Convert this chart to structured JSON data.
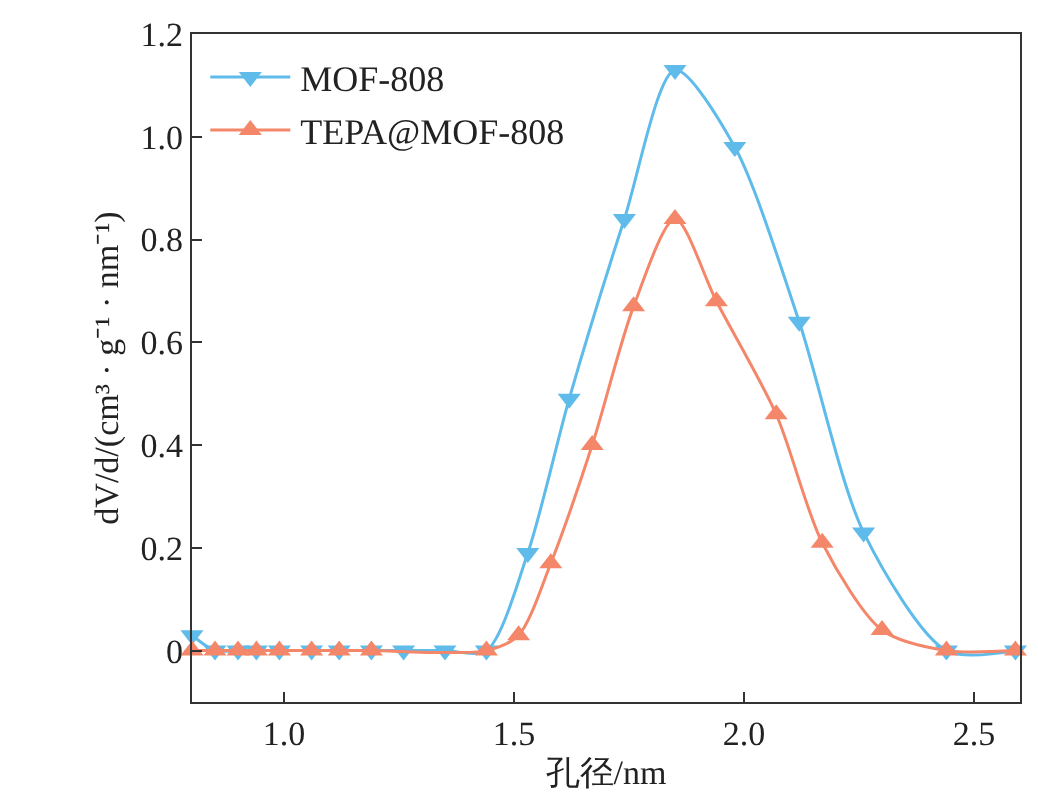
{
  "chart_data": {
    "type": "line",
    "xlabel": "孔径/nm",
    "ylabel": "dV/d/(cm³ · g⁻¹ · nm⁻¹)",
    "xlim": [
      0.8,
      2.6
    ],
    "xticks": [
      {
        "value": 1,
        "label": "1.0"
      },
      1.5,
      {
        "value": 2,
        "label": "2.0"
      },
      2.5
    ],
    "ylim": [
      -0.1,
      1.2
    ],
    "yticks": [
      0,
      0.2,
      0.4,
      0.6,
      0.8,
      {
        "value": 1,
        "label": "1.0"
      },
      1.2
    ],
    "legend": "top left",
    "series": [
      {
        "name": "MOF-808",
        "color": "#5fbbe9",
        "marker": "triangle-down",
        "x": [
          0.8,
          0.85,
          0.9,
          0.94,
          0.99,
          1.06,
          1.12,
          1.19,
          1.26,
          1.35,
          1.44,
          1.53,
          1.62,
          1.74,
          1.85,
          1.98,
          2.12,
          2.26,
          2.44,
          2.59
        ],
        "values": [
          0.03,
          0,
          0,
          0,
          0,
          0,
          0,
          0,
          0,
          0,
          0,
          0.19,
          0.49,
          0.84,
          1.13,
          0.98,
          0.64,
          0.23,
          0,
          0
        ]
      },
      {
        "name": "TEPA@MOF-808",
        "color": "#f4876a",
        "marker": "triangle",
        "x": [
          0.8,
          0.85,
          0.9,
          0.94,
          0.99,
          1.06,
          1.12,
          1.19,
          1.44,
          1.51,
          1.58,
          1.67,
          1.76,
          1.85,
          1.94,
          2.07,
          2.17,
          2.3,
          2.44,
          2.59
        ],
        "values": [
          0,
          0,
          0,
          0,
          0,
          0,
          0,
          0,
          0,
          0.03,
          0.17,
          0.4,
          0.67,
          0.84,
          0.68,
          0.46,
          0.21,
          0.04,
          0,
          0
        ]
      }
    ]
  }
}
